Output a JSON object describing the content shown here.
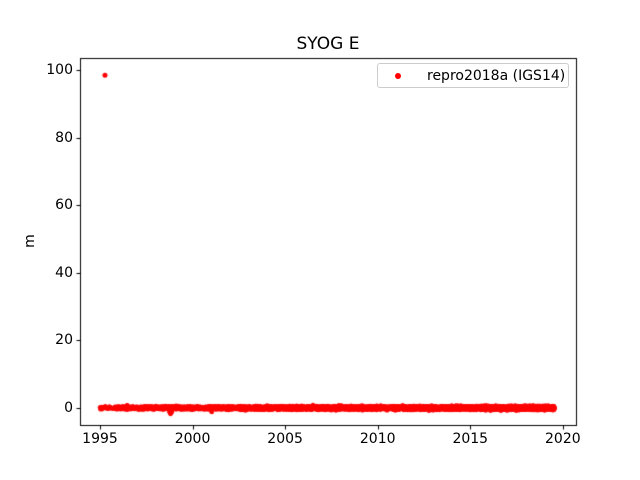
{
  "figure": {
    "background_color": "#ffffff",
    "frame_color": "#000000"
  },
  "chart_data": {
    "type": "scatter",
    "title": "SYOG E",
    "xlabel": "",
    "ylabel": "m",
    "xlim": [
      1993.92,
      2020.71
    ],
    "ylim": [
      -5.0,
      103.8
    ],
    "xticks": [
      1995,
      2000,
      2005,
      2010,
      2015,
      2020
    ],
    "yticks": [
      0,
      20,
      40,
      60,
      80,
      100
    ],
    "grid": false,
    "legend": {
      "position": "upper-right",
      "entries": [
        {
          "label": "repro2018a (IGS14)",
          "color": "#ff0000",
          "marker": "point"
        }
      ]
    },
    "series": [
      {
        "name": "repro2018a (IGS14)",
        "color": "#ff0000",
        "marker": "point",
        "marker_radius_px": 2.2,
        "outlier_points": [
          [
            1995.27,
            98.6
          ]
        ],
        "dense_band": {
          "x_start": 1995.0,
          "x_end": 2019.55,
          "sparse_until": 1995.8,
          "points_per_year": 365,
          "y_center": 0.0,
          "y_std_start": 0.18,
          "y_std_end": 0.28,
          "y_clip": 0.85
        },
        "dip_points": [
          [
            1998.74,
            -1.3
          ],
          [
            1998.78,
            -1.7
          ],
          [
            1998.82,
            -1.9
          ],
          [
            1998.86,
            -1.5
          ],
          [
            1998.9,
            -1.2
          ],
          [
            2001.0,
            -1.15
          ],
          [
            2001.05,
            -1.3
          ]
        ]
      }
    ]
  }
}
